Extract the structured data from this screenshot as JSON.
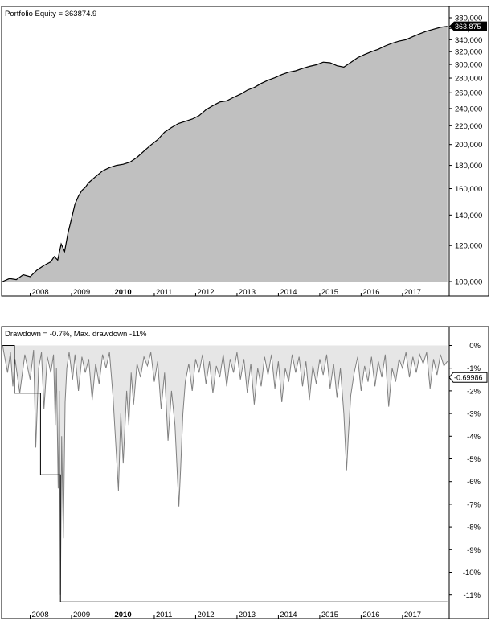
{
  "colors": {
    "background": "#ffffff",
    "border": "#000000",
    "equity_fill": "#c0c0c0",
    "equity_line": "#000000",
    "drawdown_line": "#808080",
    "maxdd_line": "#000000",
    "badge_bg": "#000000",
    "badge_text": "#ffffff",
    "grid_tick": "#808080"
  },
  "chart_data": [
    {
      "type": "area",
      "title": "Portfolio Equity = 363874.9",
      "series": [
        {
          "name": "Portfolio Equity",
          "x": [
            "2007-05-01",
            "2007-07-01",
            "2007-09-01",
            "2007-11-01",
            "2008-01-01",
            "2008-03-01",
            "2008-05-01",
            "2008-07-01",
            "2008-08-01",
            "2008-09-01",
            "2008-10-01",
            "2008-11-01",
            "2008-12-01",
            "2009-01-01",
            "2009-02-01",
            "2009-03-01",
            "2009-04-01",
            "2009-05-01",
            "2009-06-01",
            "2009-08-01",
            "2009-10-01",
            "2009-12-01",
            "2010-02-01",
            "2010-04-01",
            "2010-06-01",
            "2010-08-01",
            "2010-10-01",
            "2010-12-01",
            "2011-02-01",
            "2011-04-01",
            "2011-06-01",
            "2011-08-01",
            "2011-10-01",
            "2011-12-01",
            "2012-02-01",
            "2012-04-01",
            "2012-06-01",
            "2012-08-01",
            "2012-10-01",
            "2012-12-01",
            "2013-02-01",
            "2013-04-01",
            "2013-06-01",
            "2013-08-01",
            "2013-10-01",
            "2013-12-01",
            "2014-02-01",
            "2014-04-01",
            "2014-06-01",
            "2014-08-01",
            "2014-10-01",
            "2014-12-01",
            "2015-02-01",
            "2015-04-01",
            "2015-06-01",
            "2015-08-01",
            "2015-10-01",
            "2015-12-01",
            "2016-02-01",
            "2016-04-01",
            "2016-06-01",
            "2016-08-01",
            "2016-10-01",
            "2016-12-01",
            "2017-02-01",
            "2017-04-01",
            "2017-06-01",
            "2017-08-01",
            "2017-10-01",
            "2017-12-01",
            "2018-02-01"
          ],
          "values": [
            100000,
            101500,
            101000,
            103500,
            102500,
            106000,
            108500,
            110500,
            113500,
            111500,
            121000,
            116500,
            128000,
            137500,
            148000,
            154000,
            158500,
            161000,
            165000,
            170000,
            175000,
            178000,
            180000,
            181000,
            183000,
            187500,
            193500,
            199500,
            205000,
            213000,
            218000,
            222500,
            225000,
            227500,
            231500,
            238500,
            243500,
            248000,
            249500,
            254000,
            258000,
            263500,
            267000,
            272500,
            277000,
            280500,
            285000,
            288500,
            290500,
            294000,
            297000,
            299500,
            303500,
            302500,
            298000,
            296000,
            303000,
            310500,
            315500,
            320000,
            324000,
            329500,
            334000,
            337500,
            340000,
            345500,
            350500,
            355000,
            358500,
            362000,
            363874.9
          ]
        }
      ],
      "yscale": "log",
      "ylim": [
        100000,
        380000
      ],
      "yticks": [
        100000,
        120000,
        140000,
        160000,
        180000,
        200000,
        220000,
        240000,
        260000,
        280000,
        300000,
        320000,
        340000,
        360000,
        380000
      ],
      "ytick_labels": [
        "100,000",
        "120,000",
        "140,000",
        "160,000",
        "180,000",
        "200,000",
        "220,000",
        "240,000",
        "260,000",
        "280,000",
        "300,000",
        "320,000",
        "340,000",
        "360,000",
        "380,000"
      ],
      "last_value_label": "363,875",
      "xticks": [
        "2008",
        "2009",
        "2010",
        "2011",
        "2012",
        "2013",
        "2014",
        "2015",
        "2016",
        "2017"
      ],
      "bold_xtick": "2010",
      "grid": false
    },
    {
      "type": "line",
      "title": "Drawdown = -0.7%, Max. drawdown -11%",
      "series": [
        {
          "name": "Drawdown",
          "x": [
            "2007-05-01",
            "2007-06-15",
            "2007-07-10",
            "2007-08-01",
            "2007-08-20",
            "2007-10-01",
            "2007-11-15",
            "2008-01-01",
            "2008-02-01",
            "2008-02-20",
            "2008-03-15",
            "2008-04-10",
            "2008-05-01",
            "2008-06-01",
            "2008-07-01",
            "2008-07-25",
            "2008-08-10",
            "2008-08-20",
            "2008-09-05",
            "2008-09-15",
            "2008-09-25",
            "2008-10-05",
            "2008-10-20",
            "2008-11-05",
            "2008-11-20",
            "2008-12-10",
            "2009-01-10",
            "2009-02-01",
            "2009-03-01",
            "2009-04-01",
            "2009-05-01",
            "2009-06-01",
            "2009-07-01",
            "2009-08-01",
            "2009-09-01",
            "2009-10-01",
            "2009-11-01",
            "2009-12-01",
            "2010-01-01",
            "2010-02-01",
            "2010-02-20",
            "2010-03-10",
            "2010-04-01",
            "2010-05-01",
            "2010-05-20",
            "2010-06-10",
            "2010-07-01",
            "2010-08-01",
            "2010-09-01",
            "2010-10-01",
            "2010-11-01",
            "2010-12-01",
            "2011-01-01",
            "2011-02-01",
            "2011-03-01",
            "2011-04-01",
            "2011-05-01",
            "2011-06-01",
            "2011-07-01",
            "2011-08-05",
            "2011-08-20",
            "2011-09-10",
            "2011-10-01",
            "2011-11-01",
            "2011-12-01",
            "2012-01-01",
            "2012-02-01",
            "2012-03-01",
            "2012-04-01",
            "2012-05-01",
            "2012-06-01",
            "2012-07-01",
            "2012-08-01",
            "2012-09-01",
            "2012-10-01",
            "2012-11-01",
            "2012-12-01",
            "2013-01-01",
            "2013-02-01",
            "2013-03-01",
            "2013-04-01",
            "2013-05-01",
            "2013-06-01",
            "2013-07-01",
            "2013-08-01",
            "2013-09-01",
            "2013-10-01",
            "2013-11-01",
            "2013-12-01",
            "2014-01-01",
            "2014-02-01",
            "2014-03-01",
            "2014-04-01",
            "2014-05-01",
            "2014-06-01",
            "2014-07-01",
            "2014-08-01",
            "2014-09-01",
            "2014-10-01",
            "2014-11-01",
            "2014-12-01",
            "2015-01-01",
            "2015-02-01",
            "2015-03-01",
            "2015-04-01",
            "2015-05-01",
            "2015-06-01",
            "2015-07-01",
            "2015-08-01",
            "2015-08-25",
            "2015-09-10",
            "2015-10-01",
            "2015-11-01",
            "2015-12-01",
            "2016-01-01",
            "2016-02-01",
            "2016-03-01",
            "2016-04-01",
            "2016-05-01",
            "2016-06-01",
            "2016-07-01",
            "2016-08-01",
            "2016-09-01",
            "2016-10-01",
            "2016-11-01",
            "2016-12-01",
            "2017-01-01",
            "2017-02-01",
            "2017-03-01",
            "2017-04-01",
            "2017-05-01",
            "2017-06-01",
            "2017-07-01",
            "2017-08-01",
            "2017-09-01",
            "2017-10-01",
            "2017-11-01",
            "2017-12-01",
            "2018-01-01",
            "2018-02-01"
          ],
          "values": [
            0,
            -1.2,
            -0.3,
            -1.8,
            -0.6,
            -2.1,
            -0.4,
            -1.5,
            -0.2,
            -4.5,
            -1.0,
            -0.3,
            -2.8,
            -0.5,
            -1.2,
            -0.4,
            -3.5,
            -1.0,
            -6.3,
            -2.0,
            -11.0,
            -4.0,
            -8.5,
            -2.5,
            -1.0,
            -0.3,
            -1.5,
            -0.4,
            -2.0,
            -0.5,
            -1.2,
            -0.6,
            -2.4,
            -0.8,
            -1.7,
            -0.4,
            -1.0,
            -0.3,
            -2.2,
            -4.8,
            -6.4,
            -3.0,
            -5.2,
            -2.0,
            -3.5,
            -1.2,
            -2.6,
            -0.8,
            -1.4,
            -0.5,
            -0.9,
            -0.3,
            -1.6,
            -0.7,
            -2.8,
            -1.2,
            -4.2,
            -2.0,
            -3.5,
            -7.1,
            -5.5,
            -3.0,
            -1.6,
            -0.8,
            -2.0,
            -0.6,
            -1.2,
            -0.4,
            -1.7,
            -0.7,
            -2.1,
            -0.9,
            -1.4,
            -0.4,
            -1.8,
            -0.6,
            -1.2,
            -0.3,
            -1.5,
            -0.6,
            -2.1,
            -0.8,
            -2.6,
            -1.0,
            -1.8,
            -0.5,
            -1.3,
            -0.4,
            -1.9,
            -0.7,
            -2.5,
            -1.0,
            -1.6,
            -0.4,
            -1.2,
            -0.5,
            -1.8,
            -0.7,
            -2.4,
            -0.9,
            -1.7,
            -0.6,
            -1.3,
            -0.4,
            -1.9,
            -0.8,
            -2.3,
            -1.0,
            -3.0,
            -5.5,
            -4.0,
            -2.2,
            -1.2,
            -0.5,
            -2.0,
            -0.9,
            -1.6,
            -0.5,
            -1.8,
            -0.7,
            -1.4,
            -0.4,
            -2.7,
            -1.0,
            -1.6,
            -0.6,
            -1.0,
            -0.3,
            -1.4,
            -0.5,
            -1.2,
            -0.4,
            -0.8,
            -0.3,
            -1.9,
            -0.6,
            -1.3,
            -0.4,
            -0.9,
            -0.7
          ]
        },
        {
          "name": "Max. drawdown",
          "x": [
            "2007-05-01",
            "2007-08-15",
            "2007-08-15",
            "2008-04-01",
            "2008-04-01",
            "2008-09-25",
            "2008-09-25",
            "2018-02-01"
          ],
          "values": [
            0,
            0,
            -2.1,
            -2.1,
            -5.7,
            -5.7,
            -11.3,
            -11.3
          ]
        }
      ],
      "ylim": [
        -11.7,
        0.5
      ],
      "yticks": [
        0,
        -1,
        -2,
        -3,
        -4,
        -5,
        -6,
        -7,
        -8,
        -9,
        -10,
        -11
      ],
      "ytick_labels": [
        "0%",
        "-1%",
        "-2%",
        "-3%",
        "-4%",
        "-5%",
        "-6%",
        "-7%",
        "-8%",
        "-9%",
        "-10%",
        "-11%"
      ],
      "last_value_label": "-0.69986",
      "xticks": [
        "2008",
        "2009",
        "2010",
        "2011",
        "2012",
        "2013",
        "2014",
        "2015",
        "2016",
        "2017"
      ],
      "bold_xtick": "2010",
      "grid": false
    }
  ]
}
